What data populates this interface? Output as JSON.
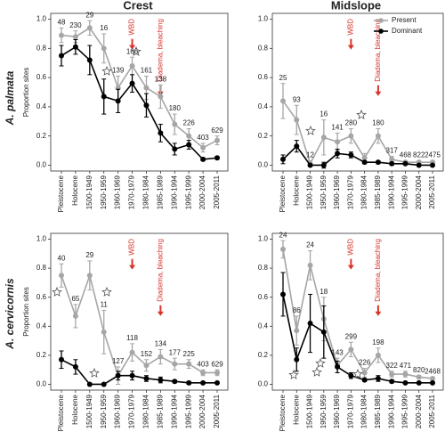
{
  "chart_data": [
    {
      "type": "line",
      "title": "Crest",
      "row_label": "A. palmata",
      "y_label": "Proportion sites",
      "categories": [
        "Pleistocene",
        "Holocene",
        "1500-1949",
        "1950-1959",
        "1960-1969",
        "1970-1979",
        "1980-1984",
        "1985-1989",
        "1990-1994",
        "1995-1999",
        "2000-2004",
        "2005-2011"
      ],
      "series": [
        {
          "color": "#a6a6a6",
          "values": [
            0.89,
            0.88,
            0.94,
            0.8,
            0.53,
            0.68,
            0.53,
            0.47,
            0.28,
            0.2,
            0.12,
            0.17
          ],
          "errors": [
            0.05,
            0.04,
            0.05,
            0.1,
            0.08,
            0.06,
            0.08,
            0.08,
            0.07,
            0.05,
            0.03,
            0.03
          ]
        },
        {
          "color": "#000000",
          "values": [
            0.75,
            0.81,
            0.72,
            0.47,
            0.44,
            0.56,
            0.41,
            0.22,
            0.11,
            0.14,
            0.04,
            0.05
          ],
          "errors": [
            0.07,
            0.05,
            0.1,
            0.12,
            0.08,
            0.06,
            0.08,
            0.06,
            0.04,
            0.03,
            0.01,
            0.01
          ]
        }
      ],
      "sample_sizes": [
        48,
        230,
        29,
        16,
        139,
        166,
        161,
        138,
        180,
        226,
        403,
        629
      ],
      "annotations": [
        {
          "text": "WBD",
          "category": "1970-1979"
        },
        {
          "text": "Diadema, bleaching",
          "category": "1985-1989"
        }
      ],
      "ylim": [
        -0.04,
        1.04
      ],
      "yticks": [
        {
          "value": 0,
          "label": "0.0"
        },
        {
          "value": 0.2,
          "label": "0.2"
        },
        {
          "value": 0.4,
          "label": "0.4"
        },
        {
          "value": 0.6,
          "label": "0.6"
        },
        {
          "value": 0.8,
          "label": "0.8"
        },
        {
          "value": 1,
          "label": "1.0"
        }
      ]
    },
    {
      "type": "line",
      "title": "Midslope",
      "categories": [
        "Pleistocene",
        "Holocene",
        "1500-1949",
        "1950-1959",
        "1960-1969",
        "1970-1979",
        "1980-1984",
        "1985-1989",
        "1990-1994",
        "1995-1999",
        "2000-2004",
        "2005-2011"
      ],
      "series": [
        {
          "name": "Present",
          "color": "#a6a6a6",
          "values": [
            0.44,
            0.31,
            0.01,
            0.19,
            0.16,
            0.2,
            0.05,
            0.2,
            0.04,
            0.02,
            0.02,
            0.02
          ],
          "errors": [
            0.12,
            0.1,
            0.02,
            0.12,
            0.06,
            0.05,
            0.03,
            0.05,
            0.02,
            0.01,
            0.01,
            0.01
          ]
        },
        {
          "name": "Dominant",
          "color": "#000000",
          "values": [
            0.04,
            0.13,
            0,
            0,
            0.08,
            0.07,
            0.02,
            0.02,
            0.01,
            0.01,
            0,
            0
          ],
          "errors": [
            0.03,
            0.04,
            0,
            0.02,
            0.03,
            0.02,
            0.01,
            0.01,
            0.01,
            0.005,
            0.005,
            0.003
          ]
        }
      ],
      "sample_sizes": [
        25,
        93,
        12,
        16,
        141,
        280,
        null,
        180,
        317,
        468,
        822,
        2475
      ],
      "annotations": [
        {
          "text": "WBD",
          "category": "1970-1979"
        },
        {
          "text": "Diadema, bleaching",
          "category": "1985-1989"
        }
      ],
      "legend": "top-right",
      "ylim": [
        -0.04,
        1.04
      ],
      "yticks": [
        {
          "value": 0,
          "label": "0.0"
        },
        {
          "value": 0.2,
          "label": "0.2"
        },
        {
          "value": 0.4,
          "label": "0.4"
        },
        {
          "value": 0.6,
          "label": "0.6"
        },
        {
          "value": 0.8,
          "label": "0.8"
        },
        {
          "value": 1,
          "label": "1.0"
        }
      ]
    },
    {
      "type": "line",
      "row_label": "A. cervicornis",
      "y_label": "Proportion sites",
      "categories": [
        "Pleistocene",
        "Holocene",
        "1500-1949",
        "1950-1959",
        "1960-1969",
        "1970-1979",
        "1980-1984",
        "1985-1989",
        "1990-1994",
        "1995-1999",
        "2000-2004",
        "2005-2011"
      ],
      "series": [
        {
          "color": "#a6a6a6",
          "values": [
            0.75,
            0.47,
            0.75,
            0.36,
            0.06,
            0.22,
            0.13,
            0.19,
            0.14,
            0.14,
            0.08,
            0.08
          ],
          "errors": [
            0.08,
            0.08,
            0.1,
            0.15,
            0.06,
            0.06,
            0.04,
            0.05,
            0.04,
            0.03,
            0.02,
            0.02
          ]
        },
        {
          "color": "#000000",
          "values": [
            0.17,
            0.12,
            0,
            0,
            0.06,
            0.06,
            0.04,
            0.03,
            0.02,
            0.01,
            0.01,
            0.01
          ],
          "errors": [
            0.06,
            0.05,
            0,
            0,
            0.03,
            0.03,
            0.02,
            0.02,
            0.01,
            0.01,
            0.005,
            0.005
          ]
        }
      ],
      "sample_sizes": [
        40,
        65,
        29,
        11,
        127,
        118,
        152,
        134,
        177,
        225,
        403,
        629
      ],
      "annotations": [
        {
          "text": "WBD",
          "category": "1970-1979"
        },
        {
          "text": "Diadema, bleaching",
          "category": "1985-1989"
        }
      ],
      "ylim": [
        -0.04,
        1.04
      ],
      "yticks": [
        {
          "value": 0,
          "label": "0.0"
        },
        {
          "value": 0.2,
          "label": "0.2"
        },
        {
          "value": 0.4,
          "label": "0.4"
        },
        {
          "value": 0.6,
          "label": "0.6"
        },
        {
          "value": 0.8,
          "label": "0.8"
        },
        {
          "value": 1,
          "label": "1.0"
        }
      ]
    },
    {
      "type": "line",
      "categories": [
        "Pleistocene",
        "Holocene",
        "1500-1949",
        "1950-1959",
        "1960-1969",
        "1970-1979",
        "1980-1984",
        "1985-1989",
        "1990-1994",
        "1995-1999",
        "2000-2004",
        "2005-2011"
      ],
      "series": [
        {
          "color": "#a6a6a6",
          "values": [
            0.93,
            0.37,
            0.82,
            0.45,
            0.13,
            0.24,
            0.08,
            0.2,
            0.07,
            0.07,
            0.05,
            0.04
          ],
          "errors": [
            0.06,
            0.1,
            0.1,
            0.15,
            0.05,
            0.05,
            0.03,
            0.05,
            0.02,
            0.02,
            0.01,
            0.01
          ]
        },
        {
          "color": "#000000",
          "values": [
            0.62,
            0.17,
            0.42,
            0.36,
            0.12,
            0.06,
            0.03,
            0.04,
            0.02,
            0.01,
            0.01,
            0.01
          ],
          "errors": [
            0.15,
            0.08,
            0.2,
            0.18,
            0.04,
            0.02,
            0.01,
            0.02,
            0.01,
            0.005,
            0.005,
            0.003
          ]
        }
      ],
      "sample_sizes": [
        24,
        86,
        24,
        18,
        143,
        299,
        226,
        198,
        322,
        471,
        820,
        2468
      ],
      "annotations": [
        {
          "text": "WBD",
          "category": "1970-1979"
        },
        {
          "text": "Diadema, bleaching",
          "category": "1985-1989"
        }
      ],
      "ylim": [
        -0.04,
        1.04
      ],
      "yticks": [
        {
          "value": 0,
          "label": "0.0"
        },
        {
          "value": 0.2,
          "label": "0.2"
        },
        {
          "value": 0.4,
          "label": "0.4"
        },
        {
          "value": 0.6,
          "label": "0.6"
        },
        {
          "value": 0.8,
          "label": "0.8"
        },
        {
          "value": 1,
          "label": "1.0"
        }
      ]
    }
  ]
}
